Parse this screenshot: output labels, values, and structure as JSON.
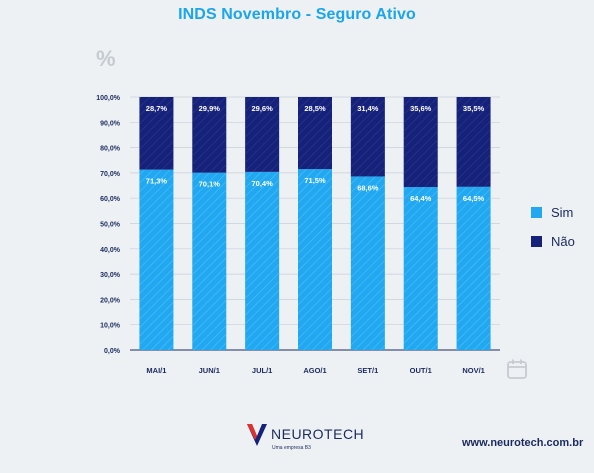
{
  "chart_data": {
    "type": "bar",
    "stacked": true,
    "title": "INDS Novembro - Seguro Ativo",
    "ylabel": "%",
    "categories": [
      "MAI/1",
      "JUN/1",
      "JUL/1",
      "AGO/1",
      "SET/1",
      "OUT/1",
      "NOV/1"
    ],
    "series": [
      {
        "name": "Sim",
        "color": "#21a8f0",
        "values": [
          71.3,
          70.1,
          70.4,
          71.5,
          68.6,
          64.4,
          64.5
        ],
        "labels": [
          "71,3%",
          "70,1%",
          "70,4%",
          "71,5%",
          "68,6%",
          "64,4%",
          "64,5%"
        ]
      },
      {
        "name": "Não",
        "color": "#16227a",
        "values": [
          28.7,
          29.9,
          29.6,
          28.5,
          31.4,
          35.6,
          35.5
        ],
        "labels": [
          "28,7%",
          "29,9%",
          "29,6%",
          "28,5%",
          "31,4%",
          "35,6%",
          "35,5%"
        ]
      }
    ],
    "yticks": [
      "0,0%",
      "10,0%",
      "20,0%",
      "30,0%",
      "40,0%",
      "50,0%",
      "60,0%",
      "70,0%",
      "80,0%",
      "90,0%",
      "100,0%"
    ],
    "ylim": [
      0,
      100
    ],
    "grid": true,
    "legend_position": "right"
  },
  "footer": {
    "brand": "NEUROTECH",
    "brand_sub": "Uma empresa B3",
    "website": "www.neurotech.com.br"
  },
  "icons": {
    "unit": "percent-icon",
    "calendar": "calendar-icon",
    "logo": "neurotech-logo"
  }
}
